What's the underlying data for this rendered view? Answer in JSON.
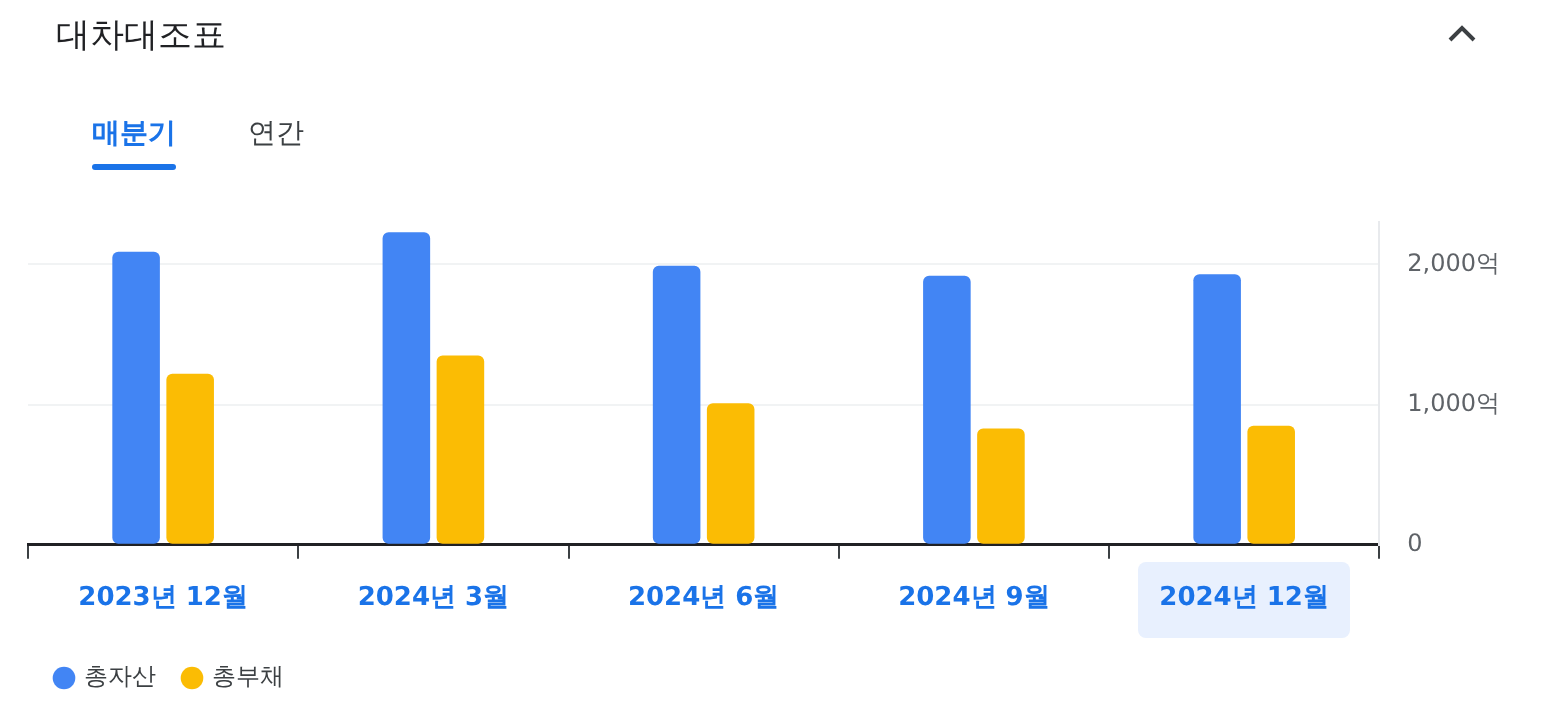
{
  "chart_data": {
    "type": "bar",
    "title": "대차대조표",
    "categories": [
      "2023년 12월",
      "2024년 3월",
      "2024년 6월",
      "2024년 9월",
      "2024년 12월"
    ],
    "series": [
      {
        "name": "총자산",
        "color": "#4285f4",
        "values": [
          2090,
          2230,
          1990,
          1920,
          1930
        ]
      },
      {
        "name": "총부채",
        "color": "#fbbc04",
        "values": [
          1220,
          1350,
          1010,
          830,
          850
        ]
      }
    ],
    "annotations": [
      "매분기",
      "연간"
    ],
    "ylim": [
      0,
      2300
    ],
    "yticks": [
      {
        "value": 0,
        "label": "0"
      },
      {
        "value": 1000,
        "label": "1,000억"
      },
      {
        "value": 2000,
        "label": "2,000억"
      }
    ],
    "grid": "y",
    "legend": "bottom left"
  }
}
